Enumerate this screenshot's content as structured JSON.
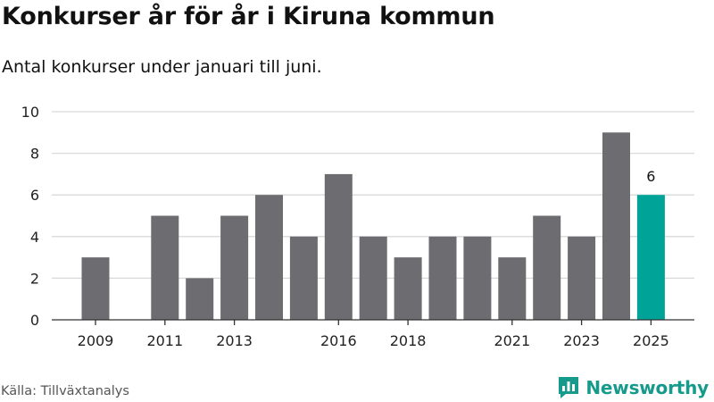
{
  "header": {
    "title": "Konkurser år för år i Kiruna kommun",
    "subtitle": "Antal konkurser under januari till juni."
  },
  "footer": {
    "source": "Källa: Tillväxtanalys",
    "brand": "Newsworthy",
    "brand_icon": "bar-chart-logo-icon"
  },
  "colors": {
    "bar": "#6d6c71",
    "highlight": "#00a398",
    "grid": "#d9d9d9",
    "axis": "#333333",
    "brand": "#159a8c"
  },
  "chart_data": {
    "type": "bar",
    "title": "Konkurser år för år i Kiruna kommun",
    "subtitle": "Antal konkurser under januari till juni.",
    "xlabel": "",
    "ylabel": "",
    "categories": [
      "2009",
      "2010",
      "2011",
      "2012",
      "2013",
      "2014",
      "2015",
      "2016",
      "2017",
      "2018",
      "2019",
      "2020",
      "2021",
      "2022",
      "2023",
      "2024",
      "2025"
    ],
    "values": [
      3,
      0,
      5,
      2,
      5,
      6,
      4,
      7,
      4,
      3,
      4,
      4,
      3,
      5,
      4,
      9,
      6
    ],
    "x_tick_labels": [
      "2009",
      "2011",
      "2013",
      "2016",
      "2018",
      "2021",
      "2023",
      "2025"
    ],
    "y_ticks": [
      0,
      2,
      4,
      6,
      8,
      10
    ],
    "ylim": [
      0,
      10
    ],
    "grid": true,
    "highlight_category": "2025",
    "data_labels": [
      {
        "category": "2025",
        "text": "6"
      }
    ],
    "legend": "none"
  }
}
